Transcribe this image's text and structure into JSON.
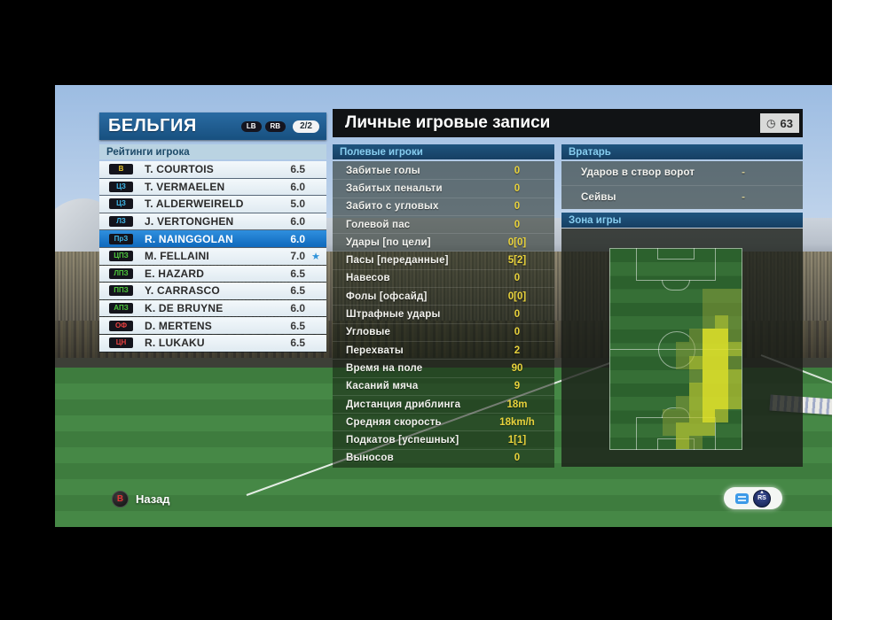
{
  "team_panel": {
    "title": "БЕЛЬГИЯ",
    "nav_buttons": [
      "LB",
      "RB"
    ],
    "page_badge": "2/2",
    "ratings_header": "Рейтинги игрока",
    "players": [
      {
        "pos": "В",
        "role": "gk",
        "name": "T. COURTOIS",
        "rating": "6.5",
        "selected": false,
        "star": false
      },
      {
        "pos": "ЦЗ",
        "role": "df",
        "name": "T. VERMAELEN",
        "rating": "6.0",
        "selected": false,
        "star": false
      },
      {
        "pos": "ЦЗ",
        "role": "df",
        "name": "T. ALDERWEIRELD",
        "rating": "5.0",
        "selected": false,
        "star": false
      },
      {
        "pos": "ЛЗ",
        "role": "df",
        "name": "J. VERTONGHEN",
        "rating": "6.0",
        "selected": false,
        "star": false
      },
      {
        "pos": "ПрЗ",
        "role": "df",
        "name": "R. NAINGGOLAN",
        "rating": "6.0",
        "selected": true,
        "star": false
      },
      {
        "pos": "ЦПЗ",
        "role": "mf",
        "name": "M. FELLAINI",
        "rating": "7.0",
        "selected": false,
        "star": true
      },
      {
        "pos": "ЛПЗ",
        "role": "mf",
        "name": "E. HAZARD",
        "rating": "6.5",
        "selected": false,
        "star": false
      },
      {
        "pos": "ППЗ",
        "role": "mf",
        "name": "Y. CARRASCO",
        "rating": "6.5",
        "selected": false,
        "star": false
      },
      {
        "pos": "АПЗ",
        "role": "mf",
        "name": "K. DE BRUYNE",
        "rating": "6.0",
        "selected": false,
        "star": false
      },
      {
        "pos": "ОФ",
        "role": "fw",
        "name": "D. MERTENS",
        "rating": "6.5",
        "selected": false,
        "star": false
      },
      {
        "pos": "ЦН",
        "role": "fw",
        "name": "R. LUKAKU",
        "rating": "6.5",
        "selected": false,
        "star": false
      }
    ],
    "role_colors": {
      "gk": "#e8c52a",
      "df": "#3fb6e8",
      "mf": "#4ec83c",
      "fw": "#e84040"
    }
  },
  "records_panel": {
    "title": "Личные игровые записи",
    "clock_icon": "clock",
    "clock_value": "63",
    "field_players": {
      "header": "Полевые игроки",
      "stats": [
        {
          "label": "Забитые голы",
          "value": "0"
        },
        {
          "label": "Забитых пенальти",
          "value": "0"
        },
        {
          "label": "Забито с угловых",
          "value": "0"
        },
        {
          "label": "Голевой пас",
          "value": "0"
        },
        {
          "label": "Удары [по цели]",
          "value": "0[0]"
        },
        {
          "label": "Пасы [переданные]",
          "value": "5[2]"
        },
        {
          "label": "Навесов",
          "value": "0"
        },
        {
          "label": "Фолы [офсайд]",
          "value": "0[0]"
        },
        {
          "label": "Штрафные удары",
          "value": "0"
        },
        {
          "label": "Угловые",
          "value": "0"
        },
        {
          "label": "Перехваты",
          "value": "2"
        },
        {
          "label": "Время на поле",
          "value": "90"
        },
        {
          "label": "Касаний мяча",
          "value": "9"
        },
        {
          "label": "Дистанция дриблинга",
          "value": "18m"
        },
        {
          "label": "Средняя скорость",
          "value": "18km/h"
        },
        {
          "label": "Подкатов [успешных]",
          "value": "1[1]"
        },
        {
          "label": "Выносов",
          "value": "0"
        }
      ]
    },
    "goalkeeper": {
      "header": "Вратарь",
      "stats": [
        {
          "label": "Ударов в створ ворот",
          "value": "-"
        },
        {
          "label": "Сейвы",
          "value": "-"
        }
      ]
    },
    "zone": {
      "header": "Зона игры",
      "heatmap": {
        "colors": [
          "rgba(140,160,55,0.50)",
          "rgba(182,196,50,0.72)",
          "rgba(222,224,42,0.90)"
        ],
        "grid": [
          [
            0,
            0,
            0,
            0,
            0,
            0,
            0,
            0,
            0,
            0
          ],
          [
            0,
            0,
            0,
            0,
            0,
            0,
            0,
            0,
            0,
            0
          ],
          [
            0,
            0,
            0,
            0,
            0,
            0,
            0,
            0,
            0,
            0
          ],
          [
            0,
            0,
            0,
            0,
            0,
            0,
            0,
            1,
            1,
            1
          ],
          [
            0,
            0,
            0,
            0,
            0,
            0,
            0,
            1,
            1,
            1
          ],
          [
            0,
            0,
            0,
            0,
            0,
            0,
            0,
            1,
            2,
            1
          ],
          [
            0,
            0,
            0,
            0,
            0,
            0,
            1,
            3,
            3,
            1
          ],
          [
            0,
            0,
            0,
            0,
            0,
            1,
            1,
            3,
            3,
            2
          ],
          [
            0,
            0,
            0,
            0,
            0,
            1,
            2,
            3,
            3,
            1
          ],
          [
            0,
            0,
            0,
            0,
            0,
            0,
            1,
            3,
            3,
            2
          ],
          [
            0,
            0,
            0,
            0,
            0,
            0,
            2,
            3,
            3,
            2
          ],
          [
            0,
            0,
            0,
            0,
            0,
            1,
            2,
            3,
            3,
            2
          ],
          [
            0,
            0,
            0,
            0,
            1,
            1,
            2,
            3,
            2,
            0
          ],
          [
            0,
            0,
            0,
            0,
            1,
            2,
            2,
            2,
            0,
            0
          ],
          [
            0,
            0,
            0,
            0,
            0,
            2,
            1,
            0,
            0,
            0
          ]
        ]
      }
    }
  },
  "footer": {
    "back_button": "B",
    "back_label": "Назад",
    "stick_label": "RS"
  }
}
